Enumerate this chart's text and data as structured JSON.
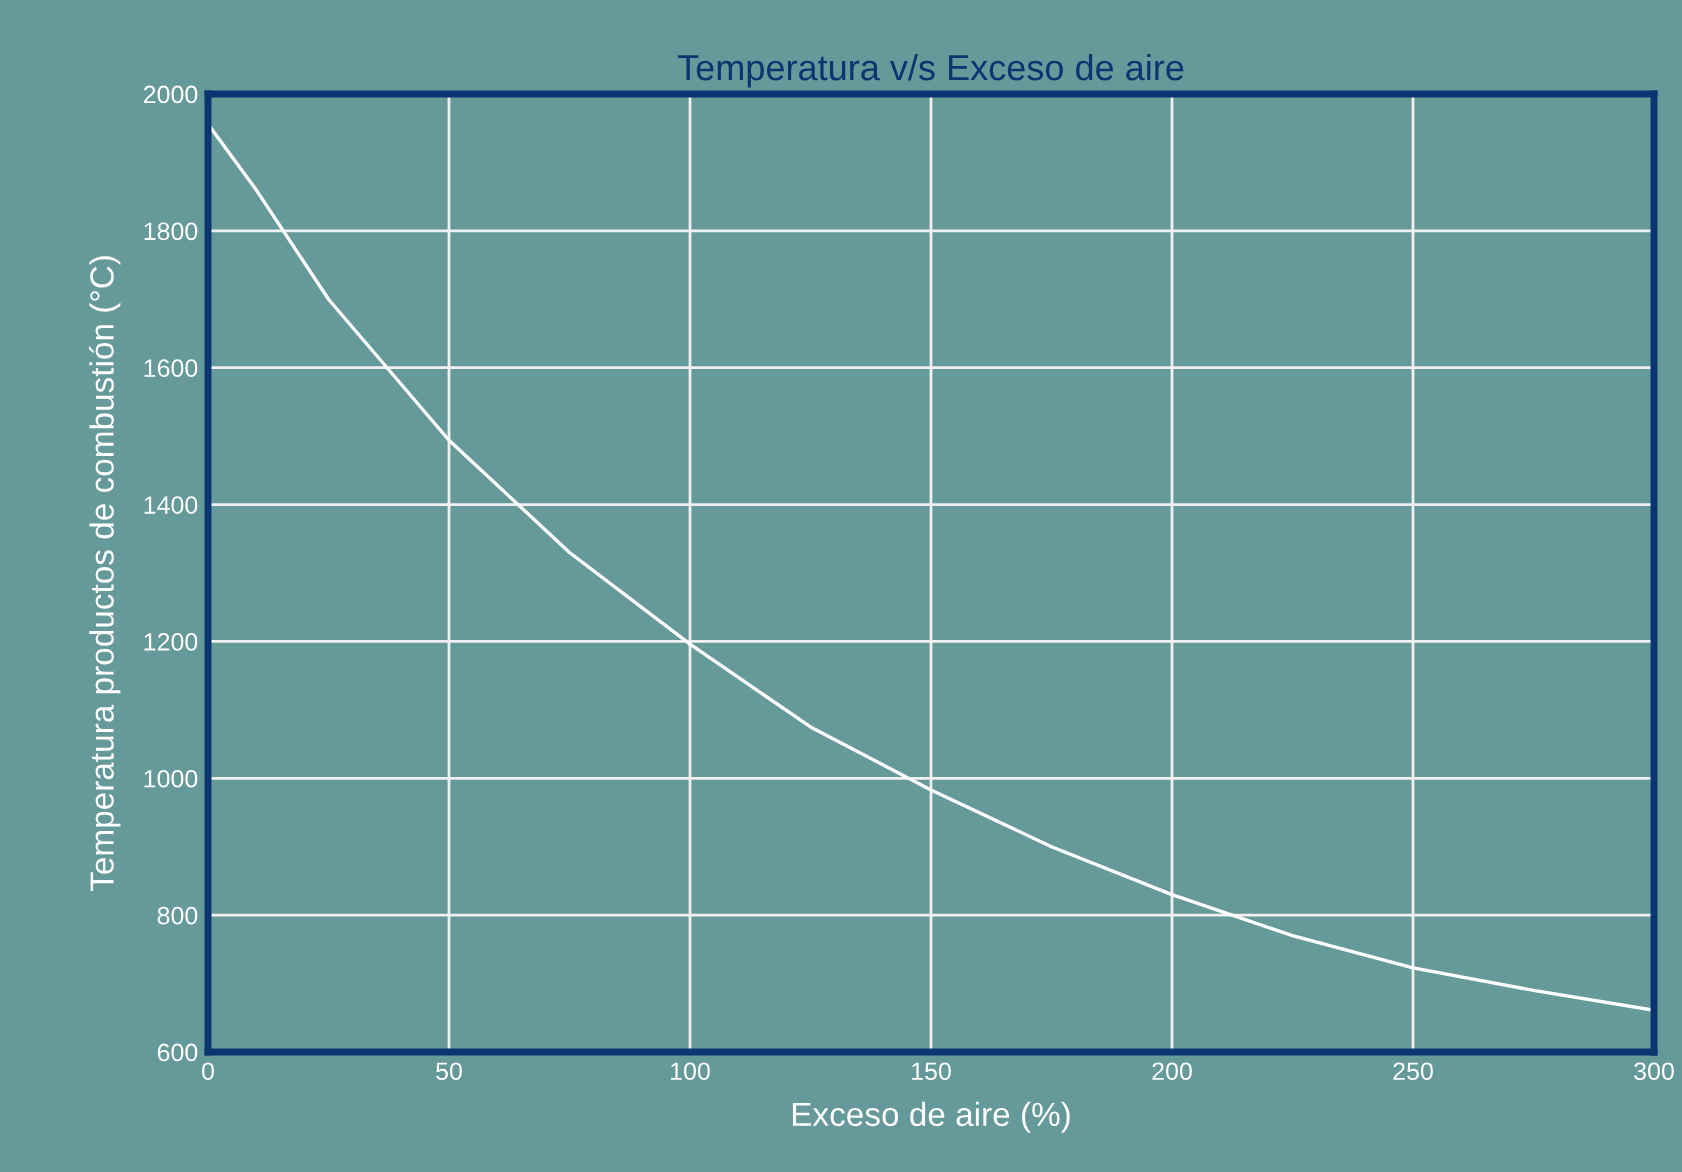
{
  "chart_data": {
    "type": "line",
    "title": "Temperatura v/s Exceso de aire",
    "xlabel": "Exceso de aire (%)",
    "ylabel": "Temperatura productos de combustión (°C)",
    "x": [
      0,
      10,
      25,
      50,
      75,
      100,
      125,
      150,
      175,
      200,
      225,
      250,
      275,
      300
    ],
    "series": [
      {
        "color": "#ffffff",
        "values": [
          1956,
          1860,
          1700,
          1494,
          1330,
          1196,
          1075,
          983,
          900,
          830,
          770,
          723,
          690,
          661
        ]
      }
    ],
    "xlim": [
      0,
      300
    ],
    "ylim": [
      600,
      2000
    ],
    "xticks": [
      0,
      50,
      100,
      150,
      200,
      250,
      300
    ],
    "yticks": [
      600,
      800,
      1000,
      1200,
      1400,
      1600,
      1800,
      2000
    ],
    "grid": true,
    "marker": "none",
    "line_style": "solid"
  }
}
